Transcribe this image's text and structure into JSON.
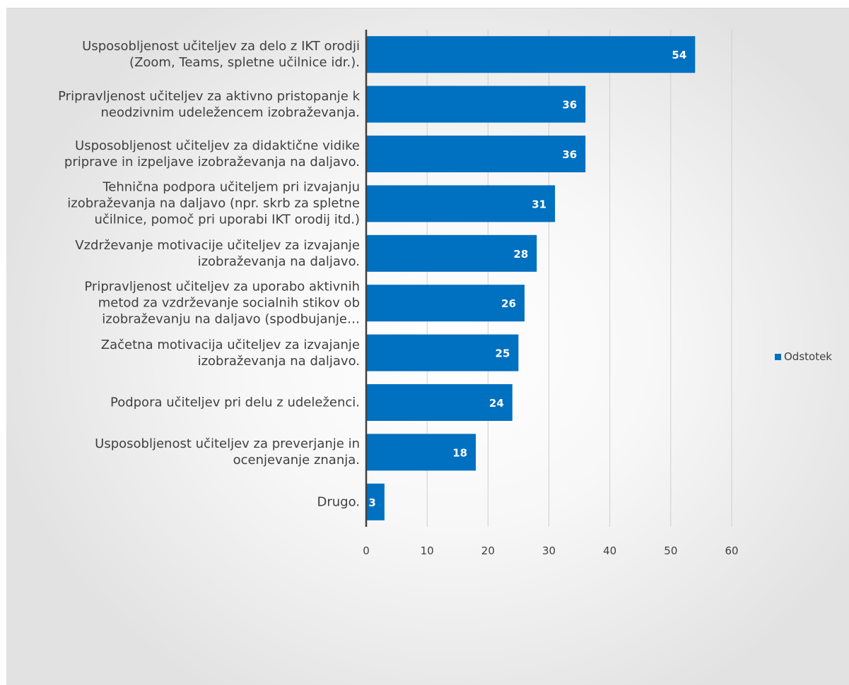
{
  "chart_data": {
    "type": "bar",
    "orientation": "horizontal",
    "categories": [
      "Usposobljenost učiteljev za delo z IKT orodji (Zoom, Teams, spletne učilnice idr.).",
      "Pripravljenost učiteljev za aktivno pristopanje k neodzivnim udeležencem izobraževanja.",
      "Usposobljenost učiteljev za didaktične vidike priprave in izpeljave izobraževanja na daljavo.",
      "Tehnična podpora učiteljem pri izvajanju izobraževanja na daljavo (npr. skrb za spletne učilnice, pomoč pri uporabi IKT orodij itd.)",
      "Vzdrževanje motivacije učiteljev za izvajanje izobraževanja na daljavo.",
      "Pripravljenost učiteljev za uporabo aktivnih metod za vzdrževanje socialnih stikov ob izobraževanju na daljavo (spodbujanje…",
      "Začetna motivacija učiteljev za izvajanje izobraževanja na daljavo.",
      "Podpora učiteljev pri delu z udeleženci.",
      "Usposobljenost učiteljev za preverjanje in ocenjevanje znanja.",
      "Drugo."
    ],
    "label_lines": [
      [
        "Usposobljenost učiteljev za delo z IKT orodji",
        "(Zoom, Teams, spletne učilnice idr.)."
      ],
      [
        "Pripravljenost učiteljev za aktivno pristopanje k",
        "neodzivnim udeležencem izobraževanja."
      ],
      [
        "Usposobljenost učiteljev za didaktične vidike",
        "priprave in izpeljave izobraževanja na daljavo."
      ],
      [
        "Tehnična podpora učiteljem pri izvajanju",
        "izobraževanja na daljavo (npr. skrb za spletne",
        "učilnice, pomoč pri uporabi IKT orodij itd.)"
      ],
      [
        "Vzdrževanje motivacije učiteljev za izvajanje",
        "izobraževanja na daljavo."
      ],
      [
        "Pripravljenost učiteljev za uporabo aktivnih",
        "metod za vzdrževanje socialnih stikov ob",
        "izobraževanju na daljavo (spodbujanje…"
      ],
      [
        "Začetna motivacija učiteljev za izvajanje",
        "izobraževanja na daljavo."
      ],
      [
        "Podpora učiteljev pri delu z udeleženci."
      ],
      [
        "Usposobljenost učiteljev za preverjanje in",
        "ocenjevanje znanja."
      ],
      [
        "Drugo."
      ]
    ],
    "series": [
      {
        "name": "Odstotek",
        "values": [
          54,
          36,
          36,
          31,
          28,
          26,
          25,
          24,
          18,
          3
        ]
      }
    ],
    "xlim": [
      0,
      60
    ],
    "x_ticks": [
      0,
      10,
      20,
      30,
      40,
      50,
      60
    ],
    "grid": "vertical",
    "legend_position": "right",
    "bar_color": "#0070c0",
    "data_label_color": "#ffffff"
  }
}
